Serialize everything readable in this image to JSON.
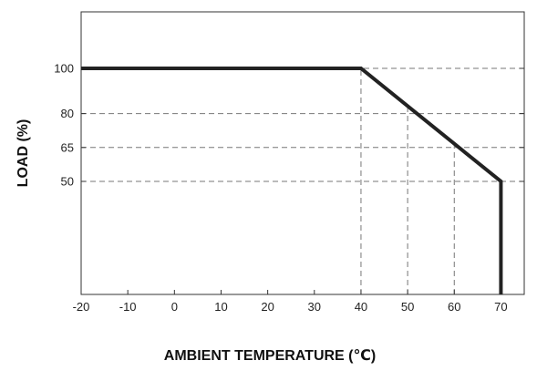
{
  "chart_data": {
    "type": "line",
    "title": "",
    "xlabel": "AMBIENT TEMPERATURE (℃)",
    "ylabel": "LOAD (%)",
    "xlim": [
      -20,
      75
    ],
    "ylim": [
      0,
      125
    ],
    "x_ticks": [
      -20,
      -10,
      0,
      10,
      20,
      30,
      40,
      50,
      60,
      70
    ],
    "y_ticks": [
      50,
      65,
      80,
      100
    ],
    "grid": "dashed reference lines at derating points",
    "reference_lines": {
      "horizontal": [
        50,
        65,
        80,
        100
      ],
      "vertical": [
        40,
        50,
        60,
        70
      ]
    },
    "series": [
      {
        "x": [
          -20,
          40,
          70,
          70
        ],
        "y": [
          100,
          100,
          50,
          0
        ],
        "color": "#222222"
      }
    ]
  }
}
